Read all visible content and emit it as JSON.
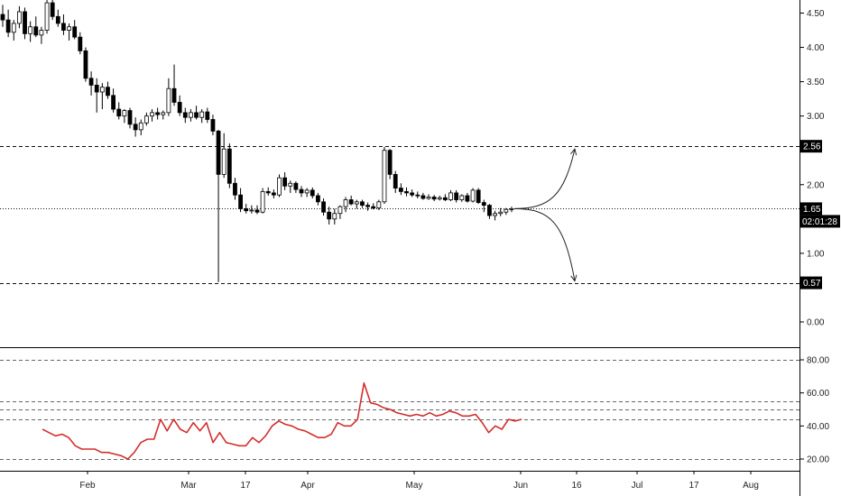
{
  "colors": {
    "up_fill": "#ffffff",
    "down_fill": "#000000",
    "candle_stroke": "#000000",
    "rsi_line": "#d32f2f",
    "badge_bg": "#000000",
    "badge_text": "#ffffff",
    "grid": "#666666"
  },
  "chart_data": [
    {
      "type": "candlestick",
      "title": "",
      "price_axis_ticks": [
        "4.50",
        "4.00",
        "3.50",
        "3.00",
        "2.00",
        "1.00",
        "0.00"
      ],
      "price_axis_tick_values": [
        4.5,
        4.0,
        3.5,
        3.0,
        2.0,
        1.0,
        0.0
      ],
      "ylim": [
        -0.55,
        4.7
      ],
      "time_axis_labels": [
        "Feb",
        "Mar",
        "17",
        "Apr",
        "May",
        "Jun",
        "16",
        "Jul",
        "17",
        "Aug"
      ],
      "horizontal_levels": [
        {
          "label": "2.56",
          "value": 2.56,
          "style": "dashed"
        },
        {
          "label": "1.65",
          "value": 1.65,
          "style": "dotted"
        },
        {
          "label": "0.57",
          "value": 0.57,
          "style": "dashed"
        }
      ],
      "countdown_label": "02:01:28",
      "projection": {
        "type": "arrows",
        "from_value": 1.65,
        "up_target": 2.56,
        "down_target": 0.57
      },
      "candles": [
        [
          4.48,
          4.62,
          4.3,
          4.4
        ],
        [
          4.4,
          4.55,
          4.15,
          4.22
        ],
        [
          4.22,
          4.4,
          4.1,
          4.35
        ],
        [
          4.35,
          4.6,
          4.28,
          4.52
        ],
        [
          4.52,
          4.58,
          4.12,
          4.2
        ],
        [
          4.2,
          4.38,
          4.08,
          4.3
        ],
        [
          4.3,
          4.45,
          4.15,
          4.18
        ],
        [
          4.18,
          4.3,
          4.05,
          4.25
        ],
        [
          4.25,
          4.75,
          4.2,
          4.65
        ],
        [
          4.65,
          4.75,
          4.4,
          4.45
        ],
        [
          4.45,
          4.55,
          4.3,
          4.35
        ],
        [
          4.35,
          4.48,
          4.18,
          4.25
        ],
        [
          4.25,
          4.35,
          4.1,
          4.3
        ],
        [
          4.3,
          4.4,
          4.12,
          4.15
        ],
        [
          4.15,
          4.22,
          3.9,
          3.95
        ],
        [
          3.95,
          4.0,
          3.5,
          3.55
        ],
        [
          3.55,
          3.65,
          3.3,
          3.45
        ],
        [
          3.45,
          3.55,
          3.05,
          3.35
        ],
        [
          3.35,
          3.48,
          3.1,
          3.42
        ],
        [
          3.42,
          3.5,
          3.25,
          3.3
        ],
        [
          3.3,
          3.4,
          3.05,
          3.1
        ],
        [
          3.1,
          3.2,
          2.95,
          3.0
        ],
        [
          3.0,
          3.1,
          2.9,
          3.08
        ],
        [
          3.08,
          3.12,
          2.82,
          2.88
        ],
        [
          2.88,
          2.98,
          2.7,
          2.8
        ],
        [
          2.8,
          2.95,
          2.72,
          2.9
        ],
        [
          2.9,
          3.05,
          2.86,
          3.0
        ],
        [
          3.0,
          3.1,
          2.92,
          3.05
        ],
        [
          3.05,
          3.12,
          2.95,
          3.02
        ],
        [
          3.02,
          3.08,
          2.95,
          3.05
        ],
        [
          3.05,
          3.55,
          3.0,
          3.4
        ],
        [
          3.4,
          3.75,
          3.15,
          3.2
        ],
        [
          3.2,
          3.3,
          3.0,
          3.05
        ],
        [
          3.05,
          3.12,
          2.9,
          2.98
        ],
        [
          2.98,
          3.1,
          2.92,
          3.05
        ],
        [
          3.05,
          3.15,
          2.95,
          2.98
        ],
        [
          2.98,
          3.1,
          2.9,
          3.06
        ],
        [
          3.06,
          3.12,
          2.9,
          2.95
        ],
        [
          2.95,
          3.02,
          2.72,
          2.78
        ],
        [
          2.78,
          2.8,
          0.58,
          2.15
        ],
        [
          2.15,
          2.75,
          2.1,
          2.52
        ],
        [
          2.52,
          2.6,
          1.95,
          2.02
        ],
        [
          2.02,
          2.1,
          1.78,
          1.85
        ],
        [
          1.85,
          1.95,
          1.6,
          1.65
        ],
        [
          1.65,
          1.72,
          1.58,
          1.62
        ],
        [
          1.62,
          1.7,
          1.58,
          1.63
        ],
        [
          1.63,
          1.7,
          1.57,
          1.6
        ],
        [
          1.6,
          1.95,
          1.58,
          1.9
        ],
        [
          1.9,
          1.96,
          1.84,
          1.88
        ],
        [
          1.88,
          1.93,
          1.8,
          1.85
        ],
        [
          1.85,
          2.15,
          1.82,
          2.1
        ],
        [
          2.1,
          2.18,
          1.92,
          1.98
        ],
        [
          1.98,
          2.06,
          1.88,
          2.02
        ],
        [
          2.02,
          2.05,
          1.88,
          1.93
        ],
        [
          1.93,
          1.98,
          1.82,
          1.88
        ],
        [
          1.88,
          1.95,
          1.82,
          1.92
        ],
        [
          1.92,
          1.96,
          1.8,
          1.84
        ],
        [
          1.84,
          1.88,
          1.7,
          1.75
        ],
        [
          1.75,
          1.8,
          1.55,
          1.6
        ],
        [
          1.6,
          1.68,
          1.42,
          1.5
        ],
        [
          1.5,
          1.65,
          1.42,
          1.58
        ],
        [
          1.58,
          1.7,
          1.5,
          1.68
        ],
        [
          1.68,
          1.82,
          1.6,
          1.78
        ],
        [
          1.78,
          1.84,
          1.7,
          1.72
        ],
        [
          1.72,
          1.78,
          1.65,
          1.75
        ],
        [
          1.75,
          1.78,
          1.66,
          1.7
        ],
        [
          1.7,
          1.74,
          1.62,
          1.68
        ],
        [
          1.68,
          1.73,
          1.64,
          1.66
        ],
        [
          1.66,
          1.78,
          1.63,
          1.75
        ],
        [
          1.75,
          2.55,
          1.72,
          2.5
        ],
        [
          2.5,
          2.52,
          2.08,
          2.15
        ],
        [
          2.15,
          2.2,
          1.88,
          1.95
        ],
        [
          1.95,
          2.02,
          1.85,
          1.9
        ],
        [
          1.9,
          1.96,
          1.83,
          1.88
        ],
        [
          1.88,
          1.93,
          1.82,
          1.85
        ],
        [
          1.85,
          1.9,
          1.8,
          1.84
        ],
        [
          1.84,
          1.88,
          1.78,
          1.8
        ],
        [
          1.8,
          1.86,
          1.78,
          1.82
        ],
        [
          1.82,
          1.85,
          1.76,
          1.79
        ],
        [
          1.79,
          1.84,
          1.77,
          1.81
        ],
        [
          1.81,
          1.86,
          1.76,
          1.78
        ],
        [
          1.78,
          1.92,
          1.76,
          1.88
        ],
        [
          1.88,
          1.92,
          1.74,
          1.78
        ],
        [
          1.78,
          1.86,
          1.75,
          1.84
        ],
        [
          1.84,
          1.88,
          1.74,
          1.76
        ],
        [
          1.76,
          1.95,
          1.74,
          1.92
        ],
        [
          1.92,
          1.95,
          1.72,
          1.74
        ],
        [
          1.74,
          1.78,
          1.6,
          1.7
        ],
        [
          1.7,
          1.72,
          1.5,
          1.55
        ],
        [
          1.55,
          1.62,
          1.48,
          1.58
        ],
        [
          1.58,
          1.66,
          1.54,
          1.6
        ],
        [
          1.6,
          1.66,
          1.56,
          1.64
        ],
        [
          1.64,
          1.68,
          1.6,
          1.65
        ]
      ]
    },
    {
      "type": "line",
      "name": "",
      "axis_ticks": [
        "80.00",
        "60.00",
        "40.00",
        "20.00"
      ],
      "axis_tick_values": [
        80,
        60,
        40,
        20
      ],
      "ylim": [
        12,
        92
      ],
      "dashed_levels": [
        80,
        55,
        50,
        44,
        20
      ],
      "values": [
        38,
        36,
        34,
        35,
        33,
        28,
        26,
        26,
        26,
        24,
        24,
        23,
        22,
        20,
        24,
        30,
        32,
        32,
        44,
        37,
        44,
        38,
        36,
        42,
        37,
        42,
        30,
        36,
        30,
        29,
        28,
        28,
        33,
        30,
        34,
        40,
        43,
        41,
        40,
        38,
        37,
        35,
        33,
        33,
        35,
        42,
        40,
        40,
        44,
        66,
        54,
        53,
        51,
        50,
        48,
        47,
        46,
        47,
        46,
        48,
        46,
        47,
        49,
        48,
        46,
        46,
        47,
        42,
        36,
        40,
        38,
        44,
        43,
        44
      ]
    }
  ]
}
